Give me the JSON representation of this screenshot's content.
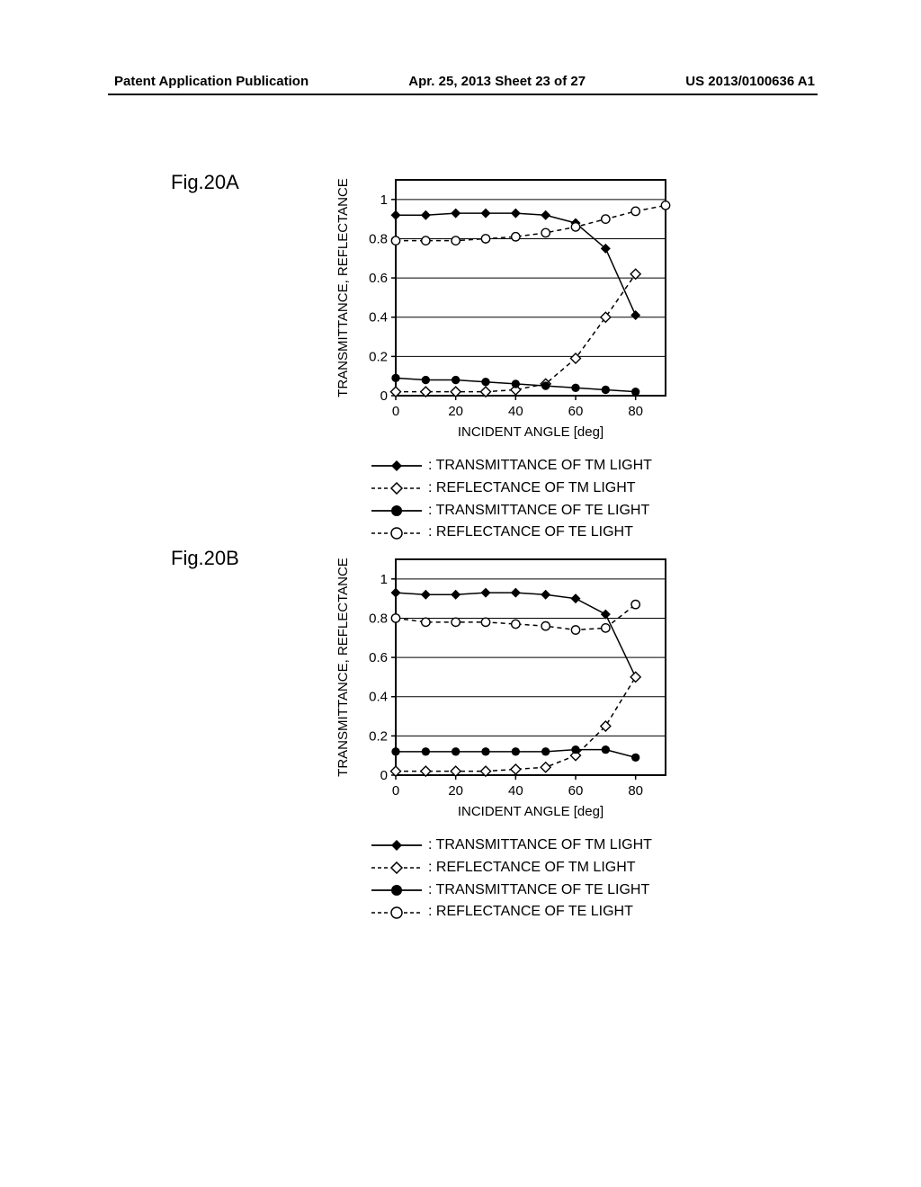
{
  "header": {
    "left": "Patent Application Publication",
    "center": "Apr. 25, 2013  Sheet 23 of 27",
    "right": "US 2013/0100636 A1"
  },
  "fig_labels": {
    "a": "Fig.20A",
    "b": "Fig.20B"
  },
  "axes": {
    "xlabel": "INCIDENT ANGLE [deg]",
    "ylabel": "TRANSMITTANCE, REFLECTANCE",
    "xticks": [
      0,
      20,
      40,
      60,
      80
    ],
    "yticks": [
      0,
      0.2,
      0.4,
      0.6,
      0.8,
      1
    ],
    "xlim": [
      0,
      90
    ],
    "ylim": [
      0,
      1.1
    ],
    "tick_fontsize": 15,
    "label_fontsize": 15
  },
  "legend": {
    "tm_trans": "TRANSMITTANCE OF TM LIGHT",
    "tm_refl": "REFLECTANCE OF TM LIGHT",
    "te_trans": "TRANSMITTANCE OF TE LIGHT",
    "te_refl": "REFLECTANCE OF TE LIGHT"
  },
  "style": {
    "axis_color": "#000000",
    "grid_color": "#000000",
    "line_width": 1.5,
    "marker_size": 5.5,
    "background": "#ffffff"
  },
  "chartA": {
    "type": "line",
    "series": {
      "tm_trans": {
        "marker": "diamond_filled",
        "dash": "solid",
        "x": [
          0,
          10,
          20,
          30,
          40,
          50,
          60,
          70,
          80
        ],
        "y": [
          0.92,
          0.92,
          0.93,
          0.93,
          0.93,
          0.92,
          0.88,
          0.75,
          0.41
        ]
      },
      "tm_refl": {
        "marker": "diamond_open",
        "dash": "dashed",
        "x": [
          0,
          10,
          20,
          30,
          40,
          50,
          60,
          70,
          80
        ],
        "y": [
          0.02,
          0.02,
          0.02,
          0.02,
          0.03,
          0.06,
          0.19,
          0.4,
          0.62
        ]
      },
      "te_trans": {
        "marker": "circle_filled",
        "dash": "solid",
        "x": [
          0,
          10,
          20,
          30,
          40,
          50,
          60,
          70,
          80
        ],
        "y": [
          0.09,
          0.08,
          0.08,
          0.07,
          0.06,
          0.05,
          0.04,
          0.03,
          0.02
        ]
      },
      "te_refl": {
        "marker": "circle_open",
        "dash": "dashed",
        "x": [
          0,
          10,
          20,
          30,
          40,
          50,
          60,
          70,
          80,
          90
        ],
        "y": [
          0.79,
          0.79,
          0.79,
          0.8,
          0.81,
          0.83,
          0.86,
          0.9,
          0.94,
          0.97
        ]
      }
    }
  },
  "chartB": {
    "type": "line",
    "series": {
      "tm_trans": {
        "marker": "diamond_filled",
        "dash": "solid",
        "x": [
          0,
          10,
          20,
          30,
          40,
          50,
          60,
          70,
          80
        ],
        "y": [
          0.93,
          0.92,
          0.92,
          0.93,
          0.93,
          0.92,
          0.9,
          0.82,
          0.5
        ]
      },
      "tm_refl": {
        "marker": "diamond_open",
        "dash": "dashed",
        "x": [
          0,
          10,
          20,
          30,
          40,
          50,
          60,
          70,
          80
        ],
        "y": [
          0.02,
          0.02,
          0.02,
          0.02,
          0.03,
          0.04,
          0.1,
          0.25,
          0.5
        ]
      },
      "te_trans": {
        "marker": "circle_filled",
        "dash": "solid",
        "x": [
          0,
          10,
          20,
          30,
          40,
          50,
          60,
          70,
          80
        ],
        "y": [
          0.12,
          0.12,
          0.12,
          0.12,
          0.12,
          0.12,
          0.13,
          0.13,
          0.09
        ]
      },
      "te_refl": {
        "marker": "circle_open",
        "dash": "dashed",
        "x": [
          0,
          10,
          20,
          30,
          40,
          50,
          60,
          70,
          80
        ],
        "y": [
          0.8,
          0.78,
          0.78,
          0.78,
          0.77,
          0.76,
          0.74,
          0.75,
          0.87
        ]
      }
    }
  }
}
